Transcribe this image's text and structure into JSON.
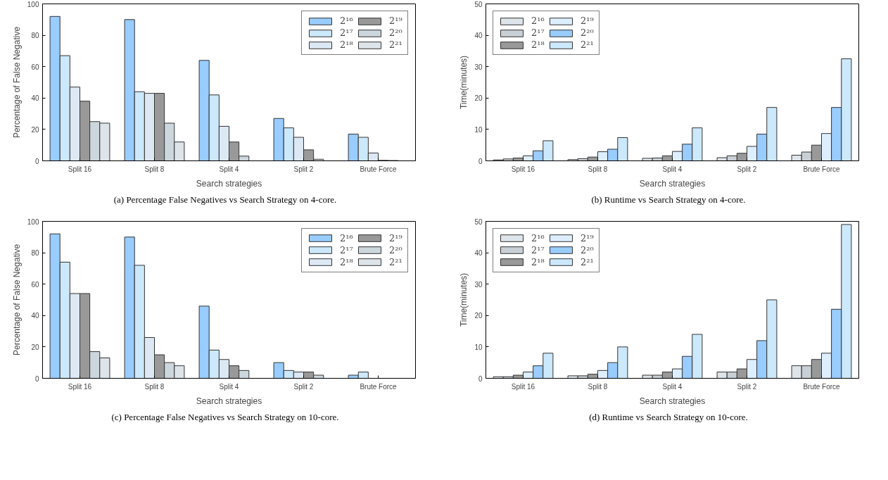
{
  "chart_data": [
    {
      "type": "bar",
      "xlabel": "Search strategies",
      "ylabel": "Percentage of False Negative",
      "categories": [
        "Split 16",
        "Split 8",
        "Split 4",
        "Split 2",
        "Brute Force"
      ],
      "ylim": [
        0,
        100
      ],
      "yticks": [
        0,
        20,
        40,
        60,
        80,
        100
      ],
      "legend": "top right",
      "grid": false,
      "annotations": [
        "(a) Percentage False Negatives vs Search Strategy on 4-core."
      ],
      "series": [
        {
          "name": "2¹⁶",
          "color": "#99ccff",
          "values": [
            92,
            90,
            64,
            27,
            17
          ]
        },
        {
          "name": "2¹⁷",
          "color": "#cce8fb",
          "values": [
            67,
            44,
            42,
            21,
            15
          ]
        },
        {
          "name": "2¹⁸",
          "color": "#dde8f5",
          "values": [
            47,
            43,
            22,
            15,
            5
          ]
        },
        {
          "name": "2¹⁹",
          "color": "#999999",
          "values": [
            38,
            43,
            12,
            7,
            0.3
          ]
        },
        {
          "name": "2²⁰",
          "color": "#ccd6dd",
          "values": [
            25,
            24,
            3,
            1,
            0.2
          ]
        },
        {
          "name": "2²¹",
          "color": "#dde4ea",
          "values": [
            24,
            12,
            null,
            null,
            null
          ]
        }
      ]
    },
    {
      "type": "bar",
      "xlabel": "Search strategies",
      "ylabel": "Time(minutes)",
      "categories": [
        "Split 16",
        "Split 8",
        "Split 4",
        "Split 2",
        "Brute Force"
      ],
      "ylim": [
        0,
        50
      ],
      "yticks": [
        0,
        10,
        20,
        30,
        40,
        50
      ],
      "legend": "top left",
      "grid": false,
      "annotations": [
        "(b) Runtime vs Search Strategy on 4-core."
      ],
      "series": [
        {
          "name": "2¹⁶",
          "color": "#dde4ea",
          "values": [
            0.3,
            0.4,
            0.8,
            1.0,
            1.8
          ]
        },
        {
          "name": "2¹⁷",
          "color": "#c8d0d6",
          "values": [
            0.6,
            0.7,
            0.9,
            1.6,
            2.8
          ]
        },
        {
          "name": "2¹⁸",
          "color": "#999999",
          "values": [
            0.9,
            1.2,
            1.6,
            2.4,
            5.0
          ]
        },
        {
          "name": "2¹⁹",
          "color": "#ddeeff",
          "values": [
            1.6,
            2.9,
            3.0,
            4.6,
            8.7
          ]
        },
        {
          "name": "2²⁰",
          "color": "#99ccff",
          "values": [
            3.2,
            3.7,
            5.3,
            8.5,
            17
          ]
        },
        {
          "name": "2²¹",
          "color": "#cce8fb",
          "values": [
            6.4,
            7.4,
            10.5,
            17,
            32.5
          ]
        }
      ]
    },
    {
      "type": "bar",
      "xlabel": "Search strategies",
      "ylabel": "Percentage of False Negative",
      "categories": [
        "Split 16",
        "Split 8",
        "Split 4",
        "Split 2",
        "Brute Force"
      ],
      "ylim": [
        0,
        100
      ],
      "yticks": [
        0,
        20,
        40,
        60,
        80,
        100
      ],
      "legend": "top right",
      "grid": false,
      "annotations": [
        "(c) Percentage False Negatives vs Search Strategy on 10-core."
      ],
      "series": [
        {
          "name": "2¹⁶",
          "color": "#99ccff",
          "values": [
            92,
            90,
            46,
            10,
            2
          ]
        },
        {
          "name": "2¹⁷",
          "color": "#cce8fb",
          "values": [
            74,
            72,
            18,
            5,
            4
          ]
        },
        {
          "name": "2¹⁸",
          "color": "#dde8f5",
          "values": [
            54,
            26,
            12,
            4,
            null
          ]
        },
        {
          "name": "2¹⁹",
          "color": "#999999",
          "values": [
            54,
            15,
            8,
            4,
            null
          ]
        },
        {
          "name": "2²⁰",
          "color": "#ccd6dd",
          "values": [
            17,
            10,
            5,
            2,
            null
          ]
        },
        {
          "name": "2²¹",
          "color": "#dde4ea",
          "values": [
            13,
            8,
            null,
            null,
            null
          ]
        }
      ]
    },
    {
      "type": "bar",
      "xlabel": "Search strategies",
      "ylabel": "Time(minutes)",
      "categories": [
        "Split 16",
        "Split 8",
        "Split 4",
        "Split 2",
        "Brute Force"
      ],
      "ylim": [
        0,
        50
      ],
      "yticks": [
        0,
        10,
        20,
        30,
        40,
        50
      ],
      "legend": "top left",
      "grid": false,
      "annotations": [
        "(d) Runtime vs Search Strategy on 10-core."
      ],
      "series": [
        {
          "name": "2¹⁶",
          "color": "#dde4ea",
          "values": [
            0.5,
            0.8,
            1,
            2,
            4
          ]
        },
        {
          "name": "2¹⁷",
          "color": "#c8d0d6",
          "values": [
            0.5,
            0.8,
            1,
            2,
            4
          ]
        },
        {
          "name": "2¹⁸",
          "color": "#999999",
          "values": [
            1,
            1.3,
            2,
            3,
            6
          ]
        },
        {
          "name": "2¹⁹",
          "color": "#ddeeff",
          "values": [
            2,
            2.5,
            3,
            6,
            8
          ]
        },
        {
          "name": "2²⁰",
          "color": "#99ccff",
          "values": [
            4,
            5,
            7,
            12,
            22
          ]
        },
        {
          "name": "2²¹",
          "color": "#cce8fb",
          "values": [
            8,
            10,
            14,
            25,
            49
          ]
        }
      ]
    }
  ]
}
